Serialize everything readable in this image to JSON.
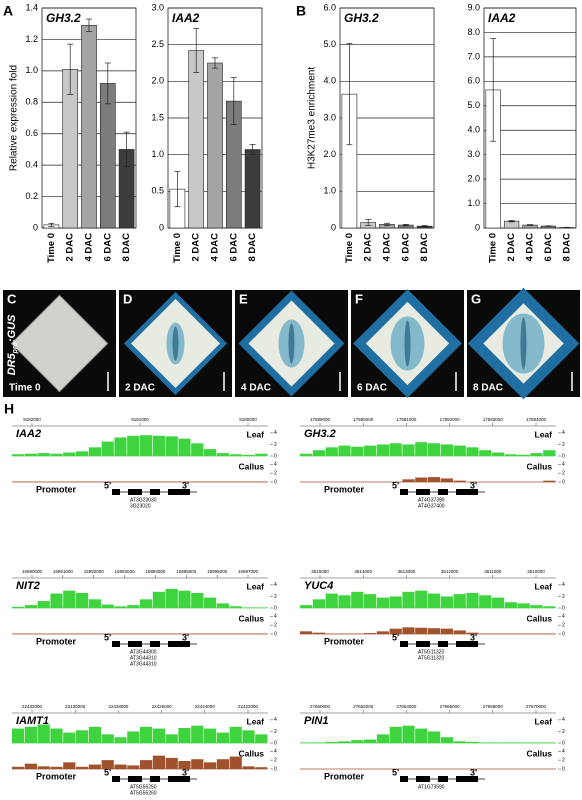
{
  "panel_labels": [
    "A",
    "B",
    "C",
    "D",
    "E",
    "F",
    "G",
    "H"
  ],
  "chart_data": [
    {
      "type": "bar",
      "title": "GH3.2",
      "ylabel": "Relative expression fold",
      "categories": [
        "Time 0",
        "2 DAC",
        "4 DAC",
        "6 DAC",
        "8 DAC"
      ],
      "values": [
        0.02,
        1.01,
        1.29,
        0.92,
        0.5
      ],
      "errors": [
        0.01,
        0.16,
        0.04,
        0.13,
        0.11
      ],
      "colors": [
        "#ffffff",
        "#c8c8c8",
        "#a4a4a4",
        "#7c7c7c",
        "#3c3c3c"
      ],
      "ylim": [
        0,
        1.4
      ],
      "yticks": [
        0,
        0.2,
        0.4,
        0.6,
        0.8,
        {
          "value": 1,
          "label": "1.0"
        },
        1.2,
        1.4
      ],
      "grid": true
    },
    {
      "type": "bar",
      "title": "IAA2",
      "categories": [
        "Time 0",
        "2 DAC",
        "4 DAC",
        "6 DAC",
        "8 DAC"
      ],
      "values": [
        0.53,
        2.42,
        2.25,
        1.73,
        1.07
      ],
      "errors": [
        0.24,
        0.3,
        0.07,
        0.32,
        0.07
      ],
      "colors": [
        "#ffffff",
        "#c8c8c8",
        "#a4a4a4",
        "#7c7c7c",
        "#3c3c3c"
      ],
      "ylim": [
        0,
        3
      ],
      "yticks": [
        0,
        0.5,
        {
          "value": 1,
          "label": "1.0"
        },
        1.5,
        {
          "value": 2,
          "label": "2.0"
        },
        2.5,
        {
          "value": 3,
          "label": "3.0"
        }
      ],
      "grid": true
    },
    {
      "type": "bar",
      "title": "GH3.2",
      "ylabel": "H3K27me3 enrichment",
      "categories": [
        "Time 0",
        "2 DAC",
        "4 DAC",
        "6 DAC",
        "8 DAC"
      ],
      "values": [
        3.65,
        0.15,
        0.1,
        0.08,
        0.05
      ],
      "errors": [
        1.38,
        0.08,
        0.03,
        0.02,
        0.02
      ],
      "colors": [
        "#ffffff",
        "#c8c8c8",
        "#a4a4a4",
        "#7c7c7c",
        "#3c3c3c"
      ],
      "ylim": [
        0,
        6
      ],
      "yticks": [
        0,
        {
          "value": 1,
          "label": "1.0"
        },
        {
          "value": 2,
          "label": "2.0"
        },
        {
          "value": 3,
          "label": "3.0"
        },
        {
          "value": 4,
          "label": "4.0"
        },
        {
          "value": 5,
          "label": "5.0"
        },
        {
          "value": 6,
          "label": "6.0"
        }
      ],
      "grid": true
    },
    {
      "type": "bar",
      "title": "IAA2",
      "categories": [
        "Time 0",
        "2 DAC",
        "4 DAC",
        "6 DAC",
        "8 DAC"
      ],
      "values": [
        5.65,
        0.28,
        0.12,
        0.08,
        0.02
      ],
      "errors": [
        2.1,
        0.03,
        0.02,
        0.01,
        0.01
      ],
      "colors": [
        "#ffffff",
        "#c8c8c8",
        "#a4a4a4",
        "#7c7c7c",
        "#3c3c3c"
      ],
      "ylim": [
        0,
        9
      ],
      "yticks": [
        0,
        {
          "value": 1,
          "label": "1.0"
        },
        {
          "value": 2,
          "label": "2.0"
        },
        {
          "value": 3,
          "label": "3.0"
        },
        {
          "value": 4,
          "label": "4.0"
        },
        {
          "value": 5,
          "label": "5.0"
        },
        {
          "value": 6,
          "label": "6.0"
        },
        {
          "value": 7,
          "label": "7.0"
        },
        {
          "value": 8,
          "label": "8.0"
        },
        {
          "value": 9,
          "label": "9.0"
        }
      ],
      "grid": true
    }
  ],
  "photos": {
    "reporter": {
      "name": "DR5",
      "subscript": "pro",
      "suffix": ":GUS"
    },
    "captions": [
      "Time 0",
      "2 DAC",
      "4 DAC",
      "6 DAC",
      "8 DAC"
    ]
  },
  "tracks": {
    "row_labels": [
      "Leaf",
      "Callus"
    ],
    "promoter": "Promoter",
    "five_prime": "5'",
    "three_prime": "3'",
    "yticks": [
      4,
      2,
      0
    ],
    "ylim": [
      0,
      4.5
    ],
    "loci": [
      {
        "gene": "IAA2",
        "coordinates": [
          "9182000",
          "9181000",
          "9180000"
        ],
        "gene_ids": [
          "AT3G23030",
          "3G23020"
        ],
        "leaf": [
          0.3,
          0.4,
          0.5,
          0.4,
          0.6,
          0.8,
          1.5,
          2.5,
          3.2,
          3.5,
          3.6,
          3.5,
          3.4,
          3.0,
          2.2,
          1.2,
          0.5,
          0.3,
          0.2,
          0.4
        ],
        "callus": [
          0.1,
          0.1,
          0.1,
          0.1,
          0.1,
          0.1,
          0.1,
          0.1,
          0.1,
          0.1,
          0.1,
          0.1,
          0.1,
          0.1,
          0.1,
          0.1,
          0.1,
          0.1,
          0.1,
          0.1
        ]
      },
      {
        "gene": "GH3.2",
        "coordinates": [
          "17589000",
          "17590000",
          "17591000",
          "17592000",
          "17593000",
          "17594000"
        ],
        "gene_ids": [
          "AT4G37390",
          "AT4G37400"
        ],
        "leaf": [
          0.4,
          1.0,
          1.5,
          1.8,
          1.6,
          1.8,
          2.0,
          2.2,
          2.0,
          2.4,
          2.2,
          2.0,
          1.8,
          1.5,
          1.0,
          0.6,
          0.3,
          0.2,
          0.5,
          1.0
        ],
        "callus": [
          0,
          0,
          0,
          0,
          0,
          0,
          0,
          0,
          0.6,
          1.0,
          1.1,
          0.8,
          0.3,
          0,
          0,
          0,
          0,
          0,
          0,
          0.3
        ]
      },
      {
        "gene": "NIT2",
        "coordinates": [
          "15990000",
          "15991000",
          "15992000",
          "15993000",
          "15994000",
          "15995000",
          "15996000",
          "15997000"
        ],
        "gene_ids": [
          "AT3G44300",
          "AT3G44310",
          "AT3G44310"
        ],
        "leaf": [
          0.2,
          0.5,
          1.2,
          2.5,
          3.0,
          2.6,
          1.5,
          0.6,
          0.3,
          0.5,
          1.5,
          2.8,
          3.3,
          3.0,
          2.6,
          1.8,
          0.8,
          0.3,
          0.1,
          0.1
        ],
        "callus": [
          0.1,
          0.1,
          0.1,
          0.1,
          0.1,
          0.1,
          0.1,
          0.1,
          0.1,
          0.1,
          0.1,
          0.1,
          0.1,
          0.1,
          0.1,
          0.1,
          0.1,
          0.1,
          0.1,
          0.1
        ]
      },
      {
        "gene": "YUC4",
        "coordinates": [
          "3615000",
          "3614000",
          "3613000",
          "3612000",
          "3611000",
          "3610000"
        ],
        "gene_ids": [
          "AT5G11320",
          "AT5G11320"
        ],
        "leaf": [
          0.5,
          1.5,
          2.5,
          2.2,
          2.8,
          2.4,
          1.8,
          2.0,
          2.8,
          3.0,
          2.5,
          2.0,
          2.4,
          2.6,
          2.2,
          1.8,
          1.0,
          0.8,
          0.5,
          0.3
        ],
        "callus": [
          0.6,
          0.3,
          0.1,
          0.1,
          0.1,
          0.2,
          0.6,
          1.2,
          1.5,
          1.4,
          1.3,
          1.2,
          0.8,
          0.3,
          0.1,
          0.1,
          0.1,
          0.1,
          0.1,
          0.1
        ]
      },
      {
        "gene": "IAMT1",
        "coordinates": [
          "22432000",
          "22430000",
          "22428000",
          "22426000",
          "22424000",
          "22422000"
        ],
        "gene_ids": [
          "AT5G55250",
          "AT5G55260"
        ],
        "leaf": [
          2.5,
          2.8,
          3.2,
          2.5,
          1.8,
          2.2,
          2.8,
          1.5,
          1.0,
          2.0,
          2.8,
          2.5,
          1.5,
          2.6,
          3.0,
          2.5,
          1.8,
          2.8,
          2.2,
          1.5
        ],
        "callus": [
          0.5,
          1.2,
          0.6,
          0.5,
          1.5,
          0.5,
          1.0,
          2.0,
          1.0,
          0.8,
          2.0,
          3.0,
          2.5,
          1.8,
          2.2,
          1.5,
          2.2,
          2.8,
          0.6,
          0.4
        ]
      },
      {
        "gene": "PIN1",
        "coordinates": [
          "27660000",
          "27662000",
          "27664000",
          "27666000",
          "27668000",
          "27670000"
        ],
        "gene_ids": [
          "AT1G73590"
        ],
        "leaf": [
          0.1,
          0.1,
          0.2,
          0.3,
          0.5,
          0.6,
          1.5,
          2.8,
          3.0,
          2.5,
          2.0,
          1.0,
          0.3,
          0.2,
          0.1,
          0.1,
          0.1,
          0.1,
          0.1,
          0.1
        ],
        "callus": [
          0,
          0,
          0,
          0,
          0,
          0,
          0,
          0,
          0,
          0,
          0,
          0,
          0,
          0,
          0,
          0,
          0,
          0,
          0,
          0
        ]
      }
    ]
  }
}
